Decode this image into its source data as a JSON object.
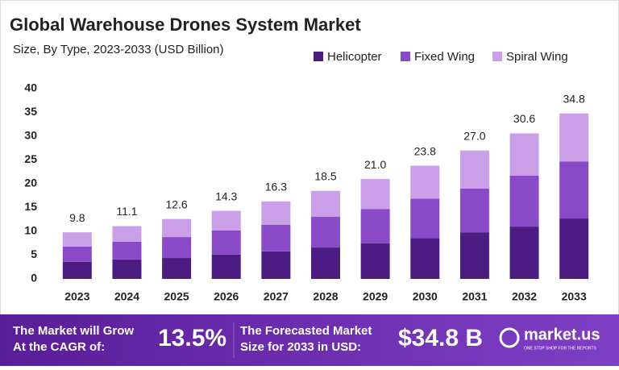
{
  "chart_data": {
    "type": "stacked_bar",
    "title": "Global Warehouse Drones System Market",
    "subtitle": "Size, By Type, 2023-2033 (USD Billion)",
    "categories": [
      "2023",
      "2024",
      "2025",
      "2026",
      "2027",
      "2028",
      "2029",
      "2030",
      "2031",
      "2032",
      "2033"
    ],
    "series": [
      {
        "name": "Helicopter",
        "color": "#4b1d82",
        "values": [
          3.6,
          4.1,
          4.4,
          5.1,
          5.8,
          6.6,
          7.5,
          8.6,
          9.8,
          11.0,
          12.7
        ]
      },
      {
        "name": "Fixed Wing",
        "color": "#8a4ac8",
        "values": [
          3.2,
          3.7,
          4.4,
          5.1,
          5.6,
          6.5,
          7.2,
          8.3,
          9.2,
          10.7,
          12.0
        ]
      },
      {
        "name": "Spiral Wing",
        "color": "#c9a0e8",
        "values": [
          3.0,
          3.3,
          3.8,
          4.1,
          4.9,
          5.4,
          6.3,
          6.9,
          8.0,
          8.9,
          10.1
        ]
      }
    ],
    "totals": {
      "values": [
        9.8,
        11.1,
        12.6,
        14.3,
        16.3,
        18.5,
        21.0,
        23.8,
        27.0,
        30.6,
        34.8
      ],
      "value_labels": [
        "9.8",
        "11.1",
        "12.6",
        "14.3",
        "16.3",
        "18.5",
        "21.0",
        "23.8",
        "27.0",
        "30.6",
        "34.8"
      ]
    },
    "ylim": [
      0,
      40
    ],
    "yticks": [
      0,
      5,
      10,
      15,
      20,
      25,
      30,
      35,
      40
    ],
    "grid": false,
    "legend": "top-right"
  },
  "footer": {
    "cagr_text": [
      "The Market will Grow",
      "At the CAGR of:"
    ],
    "cagr_value": "13.5%",
    "forecast_text": [
      "The Forecasted Market",
      "Size for 2033 in USD:"
    ],
    "forecast_value": "$34.8 B",
    "brand": "market.us",
    "tagline": "ONE STOP SHOP FOR THE REPORTS"
  }
}
